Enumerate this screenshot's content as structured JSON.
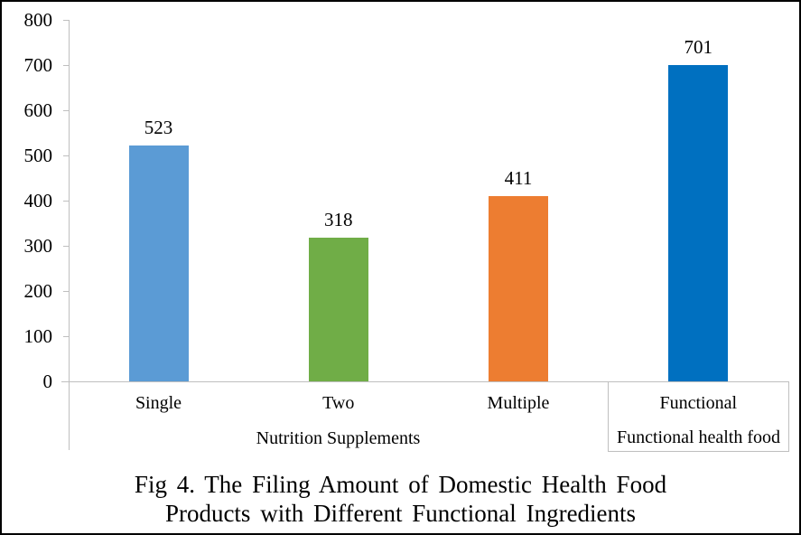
{
  "chart_data": {
    "type": "bar",
    "categories": [
      "Single",
      "Two",
      "Multiple",
      "Functional"
    ],
    "values": [
      523,
      318,
      411,
      701
    ],
    "bar_colors": [
      "#5B9BD5",
      "#70AD47",
      "#ED7D31",
      "#0070C0"
    ],
    "group_labels": [
      {
        "label": "Nutrition Supplements",
        "span": [
          0,
          3
        ]
      },
      {
        "label": "Functional health food",
        "span": [
          3,
          4
        ]
      }
    ],
    "title": "Fig 4. The Filing Amount of Domestic Health Food Products with Different Functional Ingredients",
    "title_lines": [
      "Fig 4. The Filing Amount of Domestic Health Food",
      "Products with Different Functional Ingredients"
    ],
    "xlabel": "",
    "ylabel": "",
    "ylim": [
      0,
      800
    ],
    "y_ticks": [
      0,
      100,
      200,
      300,
      400,
      500,
      600,
      700,
      800
    ],
    "grid": false,
    "legend": false,
    "data_labels": true,
    "axis_color": "#BFBFBF",
    "text_color": "#000000",
    "background_color": "#FFFFFF"
  }
}
